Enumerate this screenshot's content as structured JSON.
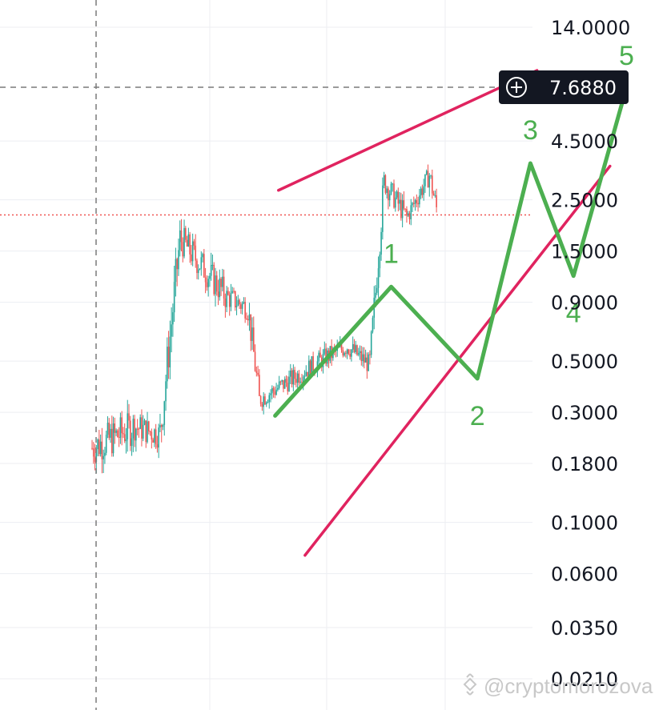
{
  "chart_data": {
    "type": "candlestick",
    "scale": "log",
    "grid": true,
    "price_axis_ticks": [
      "14.0000",
      "4.5000",
      "2.5000",
      "1.5000",
      "0.9000",
      "0.5000",
      "0.3000",
      "0.1800",
      "0.1000",
      "0.0600",
      "0.0350",
      "0.0210"
    ],
    "price_axis_values": [
      14.0,
      4.5,
      2.5,
      1.5,
      0.9,
      0.5,
      0.3,
      0.18,
      0.1,
      0.06,
      0.035,
      0.021
    ],
    "current_price_tag": "7.6880",
    "current_price": 7.688,
    "last_close_line": 2.15,
    "candle_segments": [
      {
        "from": 0,
        "to": 30,
        "start": 0.21,
        "end": 0.26,
        "vol": 0.18
      },
      {
        "from": 30,
        "to": 48,
        "start": 0.26,
        "end": 0.24,
        "vol": 0.14
      },
      {
        "from": 48,
        "to": 62,
        "start": 0.24,
        "end": 1.7,
        "vol": 0.22
      },
      {
        "from": 62,
        "to": 95,
        "start": 1.7,
        "end": 0.95,
        "vol": 0.16
      },
      {
        "from": 95,
        "to": 110,
        "start": 0.95,
        "end": 0.85,
        "vol": 0.12
      },
      {
        "from": 110,
        "to": 118,
        "start": 0.85,
        "end": 0.34,
        "vol": 0.15
      },
      {
        "from": 118,
        "to": 165,
        "start": 0.34,
        "end": 0.52,
        "vol": 0.1
      },
      {
        "from": 165,
        "to": 180,
        "start": 0.52,
        "end": 0.58,
        "vol": 0.1
      },
      {
        "from": 180,
        "to": 196,
        "start": 0.58,
        "end": 0.48,
        "vol": 0.1
      },
      {
        "from": 196,
        "to": 206,
        "start": 0.48,
        "end": 3.0,
        "vol": 0.18
      },
      {
        "from": 206,
        "to": 222,
        "start": 3.0,
        "end": 2.1,
        "vol": 0.12
      },
      {
        "from": 222,
        "to": 238,
        "start": 2.1,
        "end": 3.2,
        "vol": 0.1
      },
      {
        "from": 238,
        "to": 244,
        "start": 3.2,
        "end": 2.15,
        "vol": 0.12
      }
    ],
    "channel_lines": [
      {
        "name": "upper",
        "points": [
          [
            0.42,
            2.75
          ],
          [
            0.81,
            9.1
          ]
        ]
      },
      {
        "name": "lower",
        "points": [
          [
            0.46,
            0.072
          ],
          [
            0.92,
            3.5
          ]
        ]
      }
    ],
    "wave_points": [
      {
        "label": "",
        "x": 0.415,
        "y": 0.29
      },
      {
        "label": "1",
        "x": 0.59,
        "y": 1.05
      },
      {
        "label": "2",
        "x": 0.72,
        "y": 0.42
      },
      {
        "label": "3",
        "x": 0.8,
        "y": 3.6
      },
      {
        "label": "4",
        "x": 0.865,
        "y": 1.17
      },
      {
        "label": "5",
        "x": 0.945,
        "y": 7.688
      }
    ]
  },
  "watermark": "@cryptomorozova",
  "colors": {
    "up": "#26a69a",
    "down": "#ef5350",
    "channel": "#e0235f",
    "wave": "#4caf50",
    "grid": "#eceef2",
    "tag_bg": "#131722"
  }
}
